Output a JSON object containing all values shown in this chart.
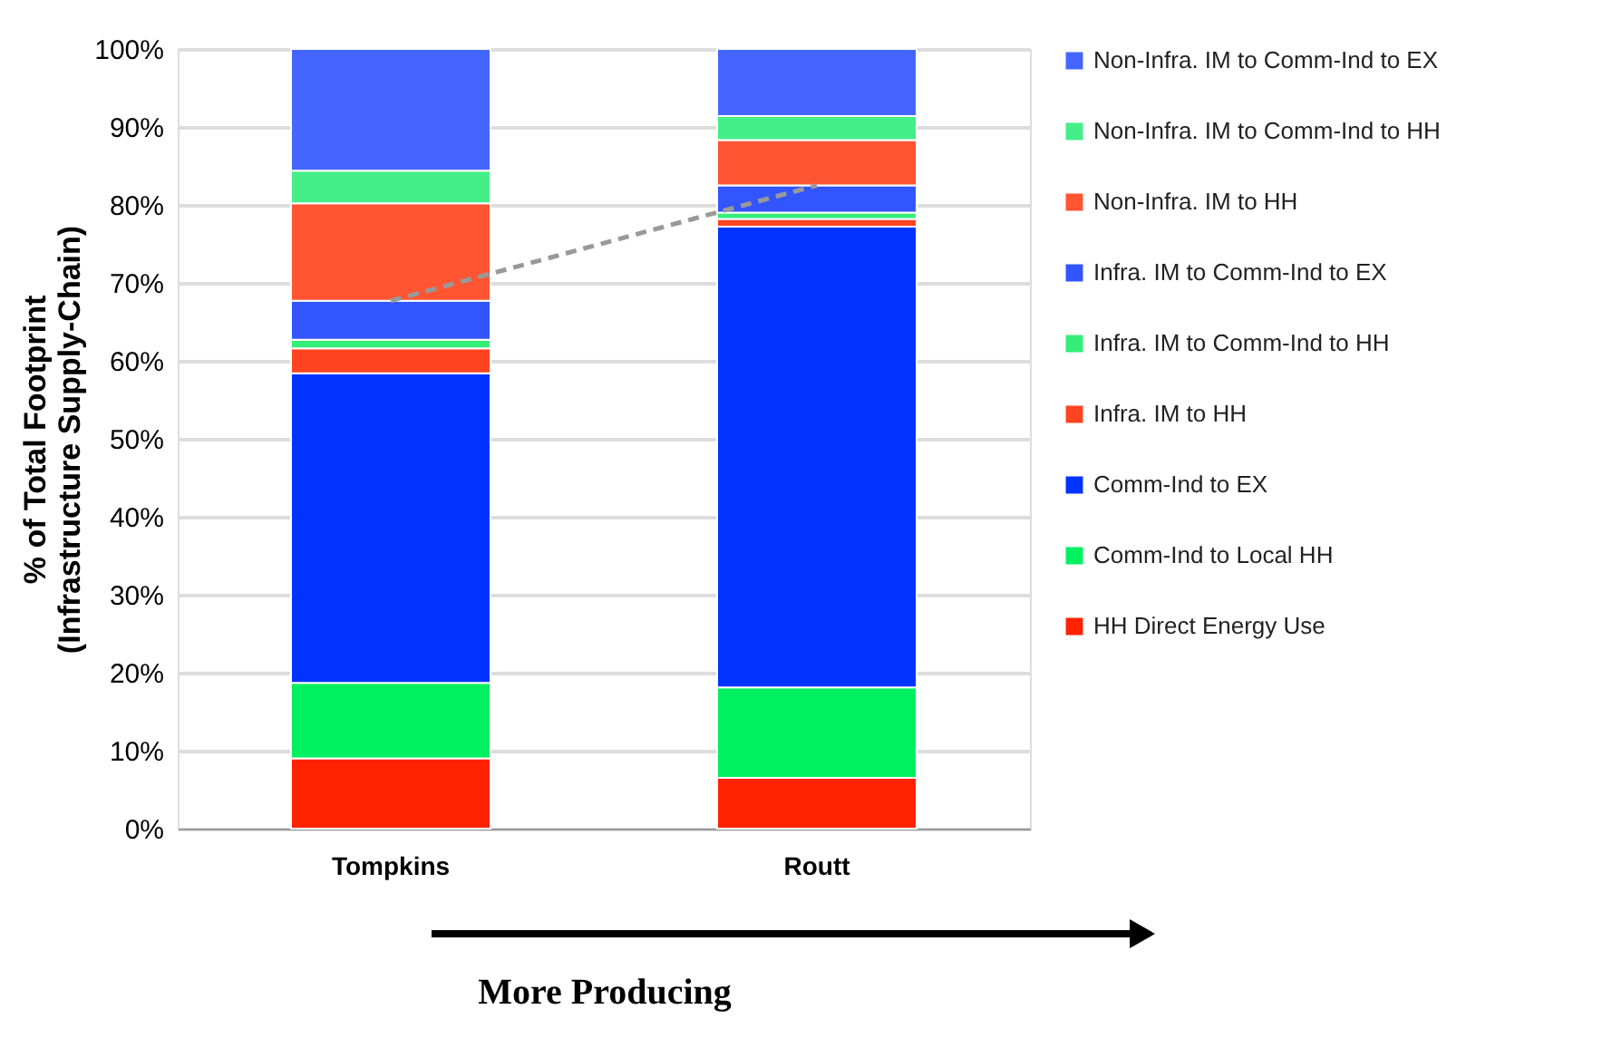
{
  "chart_data": {
    "type": "bar",
    "stacked": true,
    "ylabel": "% of Total Footprint\n(Infrastructure Supply-Chain)",
    "xlabel": "More Producing",
    "categories": [
      "Tompkins",
      "Routt"
    ],
    "series": [
      {
        "name": "HH Direct Energy Use",
        "color": "#ff2200",
        "values": [
          9.0,
          6.5
        ]
      },
      {
        "name": "Comm-Ind to Local HH",
        "color": "#00f060",
        "values": [
          9.7,
          11.6
        ]
      },
      {
        "name": "Comm-Ind to EX",
        "color": "#0033ff",
        "values": [
          39.7,
          59.1
        ]
      },
      {
        "name": "Infra. IM to HH",
        "color": "#ff4422",
        "values": [
          3.2,
          1.0
        ]
      },
      {
        "name": "Infra. IM to Comm-Ind to HH",
        "color": "#33ee77",
        "values": [
          1.1,
          0.8
        ]
      },
      {
        "name": "Infra. IM to Comm-Ind to EX",
        "color": "#3355ff",
        "values": [
          5.0,
          3.5
        ]
      },
      {
        "name": "Non-Infra. IM to HH",
        "color": "#ff5533",
        "values": [
          12.5,
          5.8
        ]
      },
      {
        "name": "Non-Infra. IM to Comm-Ind to HH",
        "color": "#44ee88",
        "values": [
          4.2,
          3.1
        ]
      },
      {
        "name": "Non-Infra. IM to Comm-Ind to EX",
        "color": "#4466ff",
        "values": [
          15.6,
          8.6
        ]
      },
      {
        "type": "line",
        "line_style": "dashed",
        "color": "#999999",
        "values": [
          67.7,
          82.5
        ]
      }
    ],
    "ylim": [
      0,
      100
    ],
    "yticks": [
      {
        "value": 0,
        "label": "0%"
      },
      {
        "value": 10,
        "label": "10%"
      },
      {
        "value": 20,
        "label": "20%"
      },
      {
        "value": 30,
        "label": "30%"
      },
      {
        "value": 40,
        "label": "40%"
      },
      {
        "value": 50,
        "label": "50%"
      },
      {
        "value": 60,
        "label": "60%"
      },
      {
        "value": 70,
        "label": "70%"
      },
      {
        "value": 80,
        "label": "80%"
      },
      {
        "value": 90,
        "label": "90%"
      },
      {
        "value": 100,
        "label": "100%"
      }
    ],
    "grid": "y",
    "legend": "right"
  }
}
